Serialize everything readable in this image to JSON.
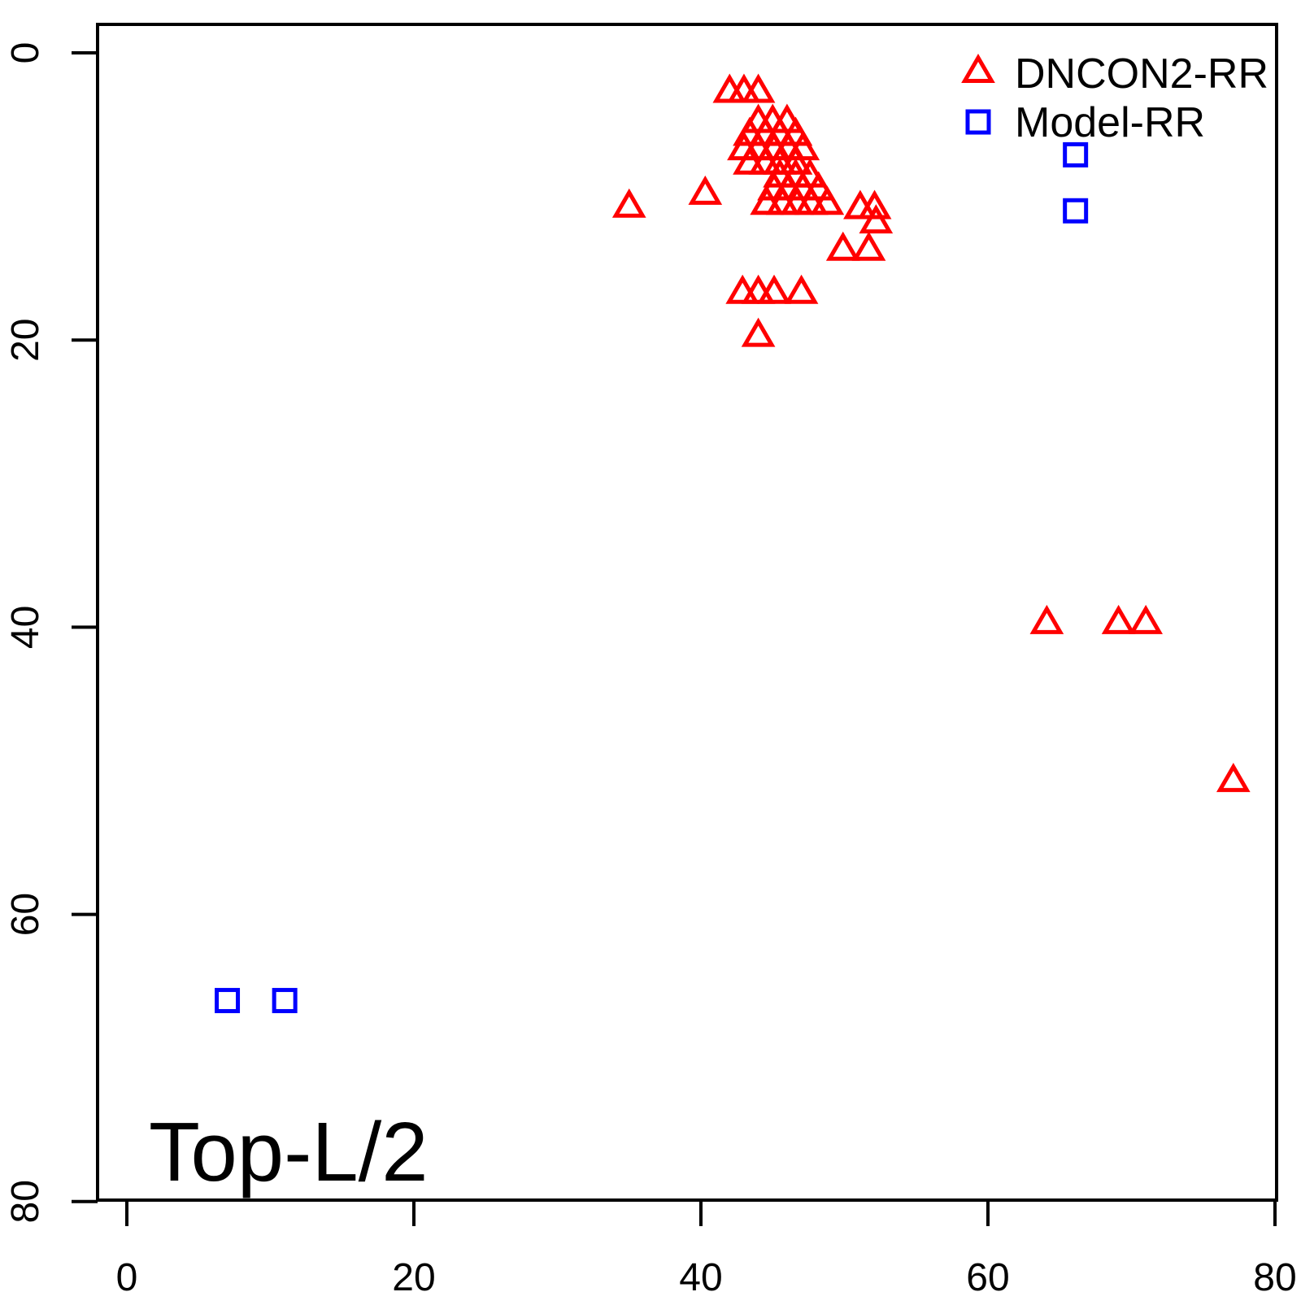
{
  "figure": {
    "background": "#FFFFFF",
    "box_color": "#000000"
  },
  "legend": {
    "position": "top-right",
    "items": [
      {
        "label": "DNCON2-RR",
        "marker": "triangle",
        "color": "#FF0000"
      },
      {
        "label": "Model-RR",
        "marker": "square",
        "color": "#0000FF"
      }
    ]
  },
  "chart_data": {
    "type": "scatter",
    "title": "Top-L/2",
    "xlabel": "",
    "ylabel": "",
    "x_ticks": [
      0,
      20,
      40,
      60,
      80
    ],
    "y_ticks": [
      0,
      20,
      40,
      60,
      80
    ],
    "xlim": [
      -2,
      80.1
    ],
    "ylim": [
      -2,
      80
    ],
    "y_axis_inverted": true,
    "grid": false,
    "legend_position": "top-right",
    "series": [
      {
        "name": "DNCON2-RR",
        "marker": "triangle",
        "color": "#FF0000",
        "points": [
          [
            42.0,
            2.8
          ],
          [
            43.0,
            2.8
          ],
          [
            44.0,
            2.8
          ],
          [
            44.0,
            4.9
          ],
          [
            45.0,
            4.9
          ],
          [
            46.0,
            4.9
          ],
          [
            43.4,
            5.8
          ],
          [
            44.5,
            5.8
          ],
          [
            45.5,
            5.8
          ],
          [
            46.6,
            5.8
          ],
          [
            43.0,
            6.8
          ],
          [
            44.0,
            6.8
          ],
          [
            45.1,
            6.8
          ],
          [
            46.1,
            6.8
          ],
          [
            47.1,
            6.8
          ],
          [
            43.4,
            7.8
          ],
          [
            44.5,
            7.8
          ],
          [
            45.5,
            7.8
          ],
          [
            46.6,
            7.8
          ],
          [
            45.5,
            8.7
          ],
          [
            46.6,
            8.7
          ],
          [
            47.6,
            8.7
          ],
          [
            45.1,
            9.6
          ],
          [
            46.1,
            9.6
          ],
          [
            47.1,
            9.6
          ],
          [
            48.2,
            9.6
          ],
          [
            44.6,
            10.6
          ],
          [
            45.7,
            10.6
          ],
          [
            46.7,
            10.6
          ],
          [
            47.7,
            10.6
          ],
          [
            48.8,
            10.6
          ],
          [
            35.0,
            10.8
          ],
          [
            40.3,
            9.9
          ],
          [
            51.1,
            10.9
          ],
          [
            52.1,
            10.9
          ],
          [
            52.2,
            11.9
          ],
          [
            49.9,
            13.8
          ],
          [
            51.7,
            13.8
          ],
          [
            42.9,
            16.8
          ],
          [
            44.0,
            16.8
          ],
          [
            45.1,
            16.8
          ],
          [
            47.0,
            16.8
          ],
          [
            44.0,
            19.8
          ],
          [
            64.1,
            39.8
          ],
          [
            69.1,
            39.8
          ],
          [
            71.0,
            39.8
          ],
          [
            77.1,
            50.8
          ]
        ]
      },
      {
        "name": "Model-RR",
        "marker": "square",
        "color": "#0000FF",
        "points": [
          [
            66.1,
            7.1
          ],
          [
            66.1,
            11.0
          ],
          [
            7.0,
            66.0
          ],
          [
            11.0,
            66.0
          ]
        ]
      }
    ]
  }
}
